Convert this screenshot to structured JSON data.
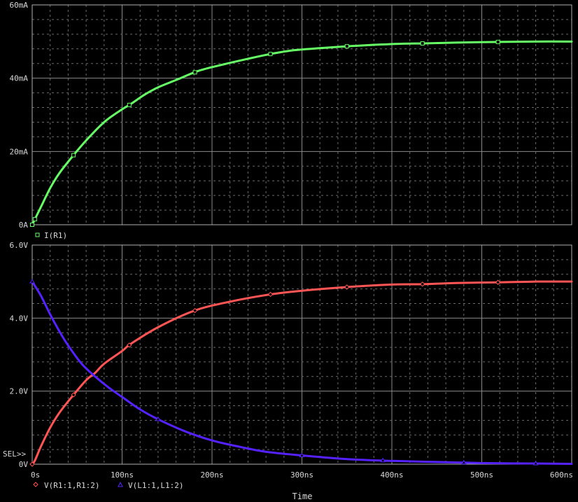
{
  "chart_data": [
    {
      "type": "line",
      "xlim": [
        0,
        600
      ],
      "ylim": [
        0,
        60
      ],
      "x_ticks": [
        "0s",
        "100ns",
        "200ns",
        "300ns",
        "400ns",
        "500ns",
        "600ns"
      ],
      "y_ticks": [
        "0A",
        "20mA",
        "40mA",
        "60mA"
      ],
      "grid": true,
      "legend": "bottom-left",
      "series": [
        {
          "name": "I(R1)",
          "color": "#66ff66",
          "marker": "square",
          "x": [
            0,
            3,
            10,
            20,
            30,
            45,
            60,
            80,
            100,
            110,
            125,
            140,
            160,
            185,
            210,
            240,
            265,
            290,
            320,
            350,
            380,
            410,
            435,
            470,
            520,
            560,
            600
          ],
          "y": [
            0,
            1.5,
            5,
            10,
            14,
            18.7,
            23,
            28,
            31.5,
            33,
            35.5,
            37.5,
            39.5,
            42,
            43.6,
            45.3,
            46.6,
            47.6,
            48.2,
            48.7,
            49.1,
            49.4,
            49.5,
            49.7,
            49.9,
            50,
            50
          ],
          "markers_x": [
            0,
            3,
            46,
            108,
            181,
            265,
            350,
            434,
            518
          ]
        }
      ]
    },
    {
      "type": "line",
      "xlim": [
        0,
        600
      ],
      "ylim": [
        0,
        6
      ],
      "x_ticks": [
        "0s",
        "100ns",
        "200ns",
        "300ns",
        "400ns",
        "500ns",
        "600ns"
      ],
      "y_ticks": [
        "0V",
        "2.0V",
        "4.0V",
        "6.0V"
      ],
      "xlabel": "Time",
      "grid": true,
      "legend": "bottom-left",
      "selection_marker": "SEL>>",
      "series": [
        {
          "name": "V(R1:1,R1:2)",
          "color": "#ff5555",
          "marker": "diamond",
          "x": [
            0,
            3,
            10,
            20,
            30,
            45,
            60,
            70,
            80,
            100,
            110,
            140,
            180,
            220,
            265,
            300,
            350,
            400,
            435,
            470,
            520,
            560,
            600
          ],
          "y": [
            0,
            0.1,
            0.5,
            1.0,
            1.4,
            1.87,
            2.3,
            2.5,
            2.75,
            3.1,
            3.3,
            3.75,
            4.2,
            4.45,
            4.65,
            4.75,
            4.85,
            4.92,
            4.93,
            4.96,
            4.98,
            5,
            5
          ],
          "markers_x": [
            0,
            46,
            108,
            181,
            265,
            350,
            434,
            518
          ]
        },
        {
          "name": "V(L1:1,L1:2)",
          "color": "#5522ff",
          "marker": "triangle",
          "x": [
            0,
            10,
            20,
            30,
            40,
            55,
            70,
            85,
            100,
            120,
            140,
            170,
            200,
            230,
            260,
            300,
            350,
            400,
            450,
            500,
            550,
            600
          ],
          "y": [
            5.0,
            4.6,
            4.1,
            3.65,
            3.25,
            2.75,
            2.4,
            2.1,
            1.84,
            1.5,
            1.23,
            0.9,
            0.65,
            0.48,
            0.34,
            0.24,
            0.14,
            0.09,
            0.06,
            0.03,
            0.02,
            0.01
          ],
          "markers_x": [
            0,
            140,
            300,
            390,
            480,
            560
          ]
        }
      ]
    }
  ]
}
